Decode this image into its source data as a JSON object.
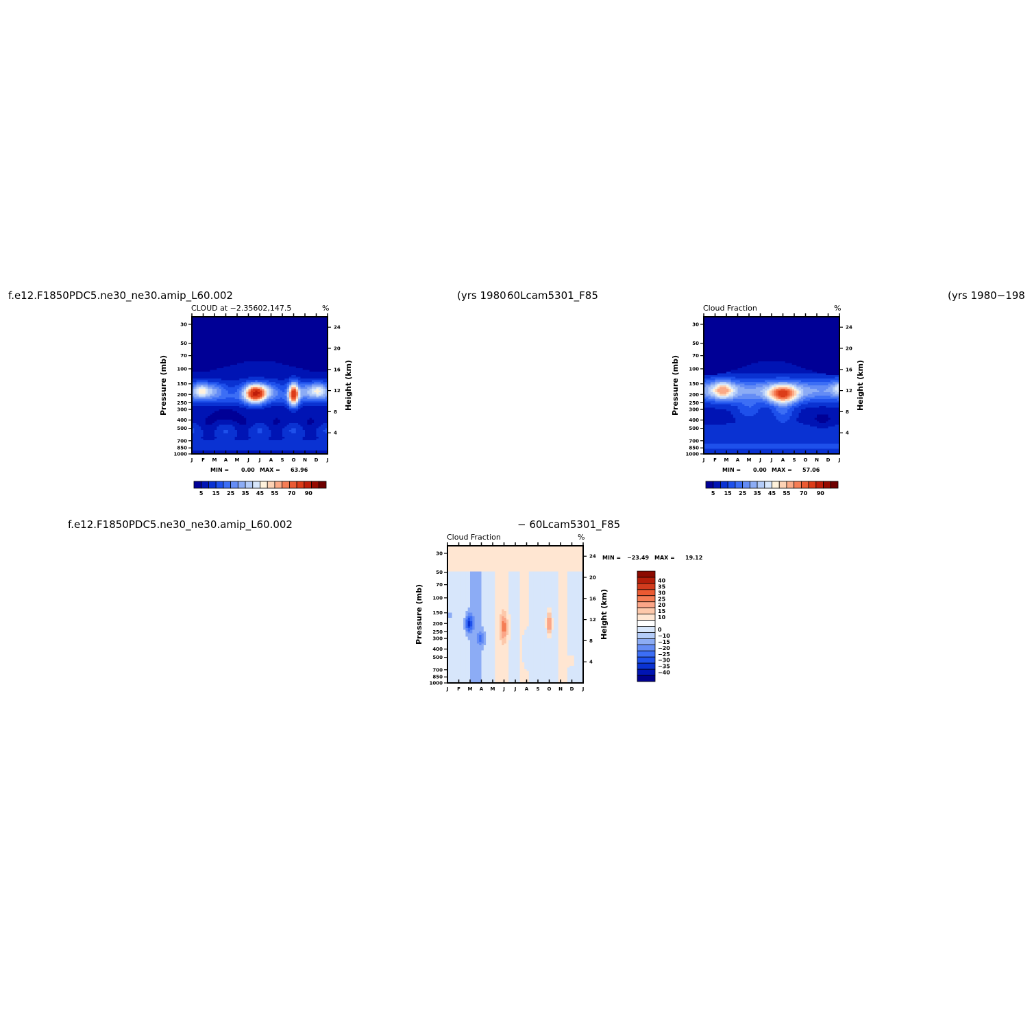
{
  "titles": {
    "top_left_case": "f.e12.F1850PDC5.ne30_ne30.amip_L60.002",
    "top_left_years": "(yrs 1980",
    "top_right_case": "60Lcam5301_F85",
    "top_right_years": "(yrs 1980−198",
    "bottom_left_case": "f.e12.F1850PDC5.ne30_ne30.amip_L60.002",
    "bottom_right_case": "− 60Lcam5301_F85"
  },
  "chart_data": [
    {
      "type": "heatmap",
      "panel": "top-left",
      "title": "CLOUD at −2.35602,147.5",
      "units": "%",
      "ylabel": "Pressure (mb)",
      "ylabel_right": "Height (km)",
      "x_ticks": [
        "J",
        "F",
        "M",
        "A",
        "M",
        "J",
        "J",
        "A",
        "S",
        "O",
        "N",
        "D",
        "J"
      ],
      "y_ticks": [
        30,
        50,
        70,
        100,
        150,
        200,
        250,
        300,
        400,
        500,
        700,
        850,
        1000
      ],
      "y_right_ticks": [
        4,
        8,
        12,
        16,
        20,
        24
      ],
      "min_label": "MIN =",
      "min_value": "0.00",
      "max_label": "MAX =",
      "max_value": "63.96",
      "colorbar_labels": [
        "5",
        "15",
        "25",
        "35",
        "45",
        "55",
        "70",
        "90"
      ],
      "colorbar_colors": [
        "#000096",
        "#0014b4",
        "#0a32d2",
        "#1e50eb",
        "#3c6ef5",
        "#648cf5",
        "#8cacf5",
        "#b4ccf8",
        "#d7e6fb",
        "#fff2dc",
        "#fdd2b4",
        "#fbaa87",
        "#f57d55",
        "#eb5a32",
        "#dc3c19",
        "#be1e0a",
        "#960a00",
        "#6e0000"
      ],
      "features": [
        {
          "name": "upper-layer-clear",
          "level_mb": "30-100",
          "value": 0
        },
        {
          "name": "peak-june",
          "month": "Jun",
          "level_mb": 200,
          "value": 55
        },
        {
          "name": "peak-october",
          "month": "Oct",
          "level_mb": 200,
          "value": 63.96
        }
      ]
    },
    {
      "type": "heatmap",
      "panel": "top-right",
      "title": "Cloud Fraction",
      "units": "%",
      "ylabel": "Pressure (mb)",
      "ylabel_right": "Height (km)",
      "x_ticks": [
        "J",
        "F",
        "M",
        "A",
        "M",
        "J",
        "J",
        "A",
        "S",
        "O",
        "N",
        "D",
        "J"
      ],
      "y_ticks": [
        30,
        50,
        70,
        100,
        150,
        200,
        250,
        300,
        400,
        500,
        700,
        850,
        1000
      ],
      "y_right_ticks": [
        4,
        8,
        12,
        16,
        20,
        24
      ],
      "min_label": "MIN =",
      "min_value": "0.00",
      "max_label": "MAX =",
      "max_value": "57.06",
      "colorbar_labels": [
        "5",
        "15",
        "25",
        "35",
        "45",
        "55",
        "70",
        "90"
      ],
      "colorbar_colors": [
        "#000096",
        "#0014b4",
        "#0a32d2",
        "#1e50eb",
        "#3c6ef5",
        "#648cf5",
        "#8cacf5",
        "#b4ccf8",
        "#d7e6fb",
        "#fff2dc",
        "#fdd2b4",
        "#fbaa87",
        "#f57d55",
        "#eb5a32",
        "#dc3c19",
        "#be1e0a",
        "#960a00",
        "#6e0000"
      ],
      "features": [
        {
          "name": "peak-february",
          "month": "Feb",
          "level_mb": 170,
          "value": 45
        },
        {
          "name": "peak-august",
          "month": "Aug",
          "level_mb": 200,
          "value": 57.06
        }
      ]
    },
    {
      "type": "heatmap",
      "panel": "bottom-difference",
      "title": "Cloud Fraction",
      "units": "%",
      "ylabel": "Pressure (mb)",
      "ylabel_right": "Height (km)",
      "x_ticks": [
        "J",
        "F",
        "M",
        "A",
        "M",
        "J",
        "J",
        "A",
        "S",
        "O",
        "N",
        "D",
        "J"
      ],
      "y_ticks": [
        30,
        50,
        70,
        100,
        150,
        200,
        250,
        300,
        400,
        500,
        700,
        850,
        1000
      ],
      "y_right_ticks": [
        4,
        8,
        12,
        16,
        20,
        24
      ],
      "min_label": "MIN =",
      "min_value": "−23.49",
      "max_label": "MAX =",
      "max_value": "19.12",
      "colorbar_labels": [
        "40",
        "35",
        "30",
        "25",
        "20",
        "15",
        "10",
        "0",
        "−10",
        "−15",
        "−20",
        "−25",
        "−30",
        "−35",
        "−40"
      ],
      "colorbar_colors": [
        "#8c0a00",
        "#b41e0a",
        "#d23c1e",
        "#eb5a32",
        "#f57d55",
        "#fba587",
        "#fdc8aa",
        "#ffe6d2",
        "#ffffff",
        "#d7e6fb",
        "#b4ccf8",
        "#8cacf5",
        "#648cf5",
        "#3c6ef5",
        "#1e50eb",
        "#0a32d2",
        "#0014b4",
        "#00008c"
      ],
      "features": [
        {
          "name": "min-march",
          "month": "Mar",
          "level_mb": 200,
          "value": -23.49
        },
        {
          "name": "max-june",
          "month": "Jun",
          "level_mb": 200,
          "value": 15
        },
        {
          "name": "max-october",
          "month": "Oct",
          "level_mb": 200,
          "value": 19.12
        }
      ]
    }
  ]
}
